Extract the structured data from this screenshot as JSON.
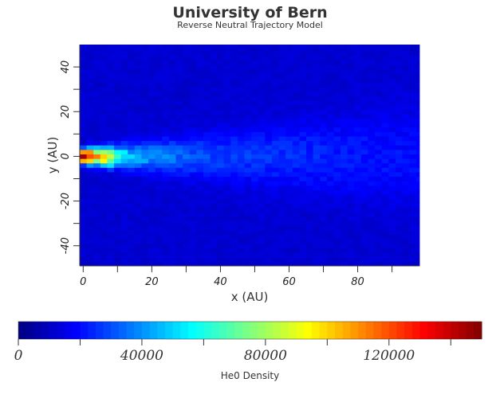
{
  "header": {
    "title": "University of Bern",
    "subtitle": "Reverse Neutral Trajectory Model"
  },
  "chart_data": {
    "type": "heatmap",
    "x_axis": {
      "label": "x (AU)",
      "range": [
        -1,
        98
      ],
      "major_ticks": [
        0,
        20,
        40,
        60,
        80
      ],
      "minor_ticks": [
        10,
        30,
        50,
        70,
        90
      ]
    },
    "y_axis": {
      "label": "y (AU)",
      "range": [
        -49,
        50
      ],
      "major_ticks": [
        -40,
        -20,
        0,
        20,
        40
      ],
      "minor_ticks": [
        -30,
        -10,
        10,
        30
      ]
    },
    "grid": false,
    "background_level": 12000,
    "wake": {
      "description_values": "density along the downwind axis (y≈0) for x in AU",
      "x": [
        0,
        2,
        4,
        6,
        8,
        10,
        15,
        20,
        30,
        40,
        60,
        80,
        97
      ],
      "peak_density": [
        150000,
        140000,
        115000,
        110000,
        95000,
        60000,
        45000,
        40000,
        32000,
        28000,
        25000,
        22000,
        20000
      ]
    },
    "colorbar": {
      "label": "He0 Density",
      "range": [
        0,
        150000
      ],
      "tick_labels": [
        "0",
        "40000",
        "80000",
        "120000"
      ],
      "tick_values": [
        0,
        40000,
        80000,
        120000
      ],
      "minor_ticks": [
        20000,
        60000,
        100000,
        140000
      ],
      "colormap": "jet",
      "colors": [
        "#00007f",
        "#0000ff",
        "#007fff",
        "#00ffff",
        "#7fff7f",
        "#ffff00",
        "#ff7f00",
        "#ff0000",
        "#7f0000"
      ]
    }
  }
}
